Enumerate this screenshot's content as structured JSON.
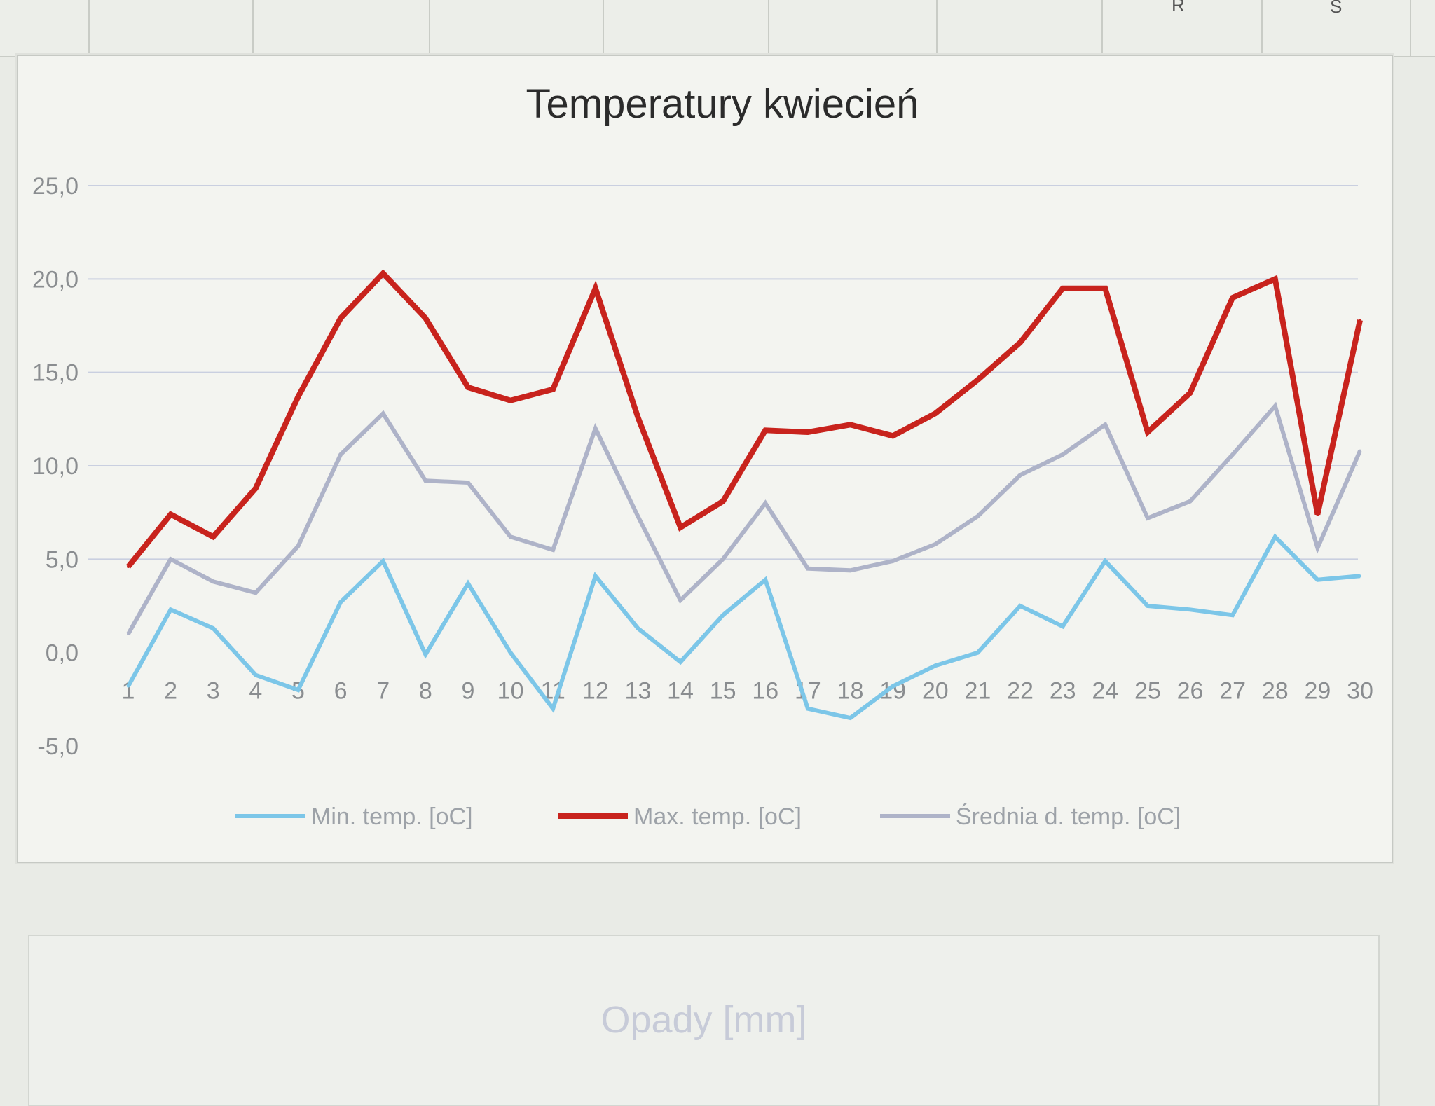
{
  "sheet": {
    "column_labels": [
      "R",
      "S"
    ]
  },
  "chart_data": {
    "type": "line",
    "title": "Temperatury kwiecień",
    "xlabel": "",
    "ylabel": "",
    "ylim": [
      -5,
      25
    ],
    "y_ticks": [
      "25,0",
      "20,0",
      "15,0",
      "10,0",
      "5,0",
      "0,0",
      "-5,0"
    ],
    "y_tick_values": [
      25,
      20,
      15,
      10,
      5,
      0,
      -5
    ],
    "grid": true,
    "legend_position": "bottom",
    "categories": [
      "1",
      "2",
      "3",
      "4",
      "5",
      "6",
      "7",
      "8",
      "9",
      "10",
      "11",
      "12",
      "13",
      "14",
      "15",
      "16",
      "17",
      "18",
      "19",
      "20",
      "21",
      "22",
      "23",
      "24",
      "25",
      "26",
      "27",
      "28",
      "29",
      "30"
    ],
    "series": [
      {
        "name": "Min. temp. [oC]",
        "color": "#7cc6e8",
        "values": [
          -1.8,
          2.3,
          1.3,
          -1.2,
          -2.0,
          2.7,
          4.9,
          -0.1,
          3.7,
          0.0,
          -3.0,
          4.1,
          1.3,
          -0.5,
          2.0,
          3.9,
          -3.0,
          -3.5,
          -1.8,
          -0.7,
          0.0,
          2.5,
          1.4,
          4.9,
          2.5,
          2.3,
          2.0,
          6.2,
          3.9,
          4.1
        ]
      },
      {
        "name": "Max. temp. [oC]",
        "color": "#c8231d",
        "values": [
          4.6,
          7.4,
          6.2,
          8.8,
          13.7,
          17.9,
          20.3,
          17.9,
          14.2,
          13.5,
          14.1,
          19.5,
          12.6,
          6.7,
          8.1,
          11.9,
          11.8,
          12.2,
          11.6,
          12.8,
          14.6,
          16.6,
          19.5,
          19.5,
          11.8,
          13.9,
          19.0,
          20.0,
          7.4,
          17.8
        ]
      },
      {
        "name": "Średnia d. temp. [oC]",
        "color": "#aeb3c8",
        "values": [
          1.0,
          5.0,
          3.8,
          3.2,
          5.7,
          10.6,
          12.8,
          9.2,
          9.1,
          6.2,
          5.5,
          12.0,
          7.3,
          2.8,
          5.0,
          8.0,
          4.5,
          4.4,
          4.9,
          5.8,
          7.3,
          9.5,
          10.6,
          12.2,
          7.2,
          8.1,
          10.6,
          13.2,
          5.6,
          10.8
        ]
      }
    ]
  },
  "second_chart": {
    "title": "Opady [mm]"
  }
}
